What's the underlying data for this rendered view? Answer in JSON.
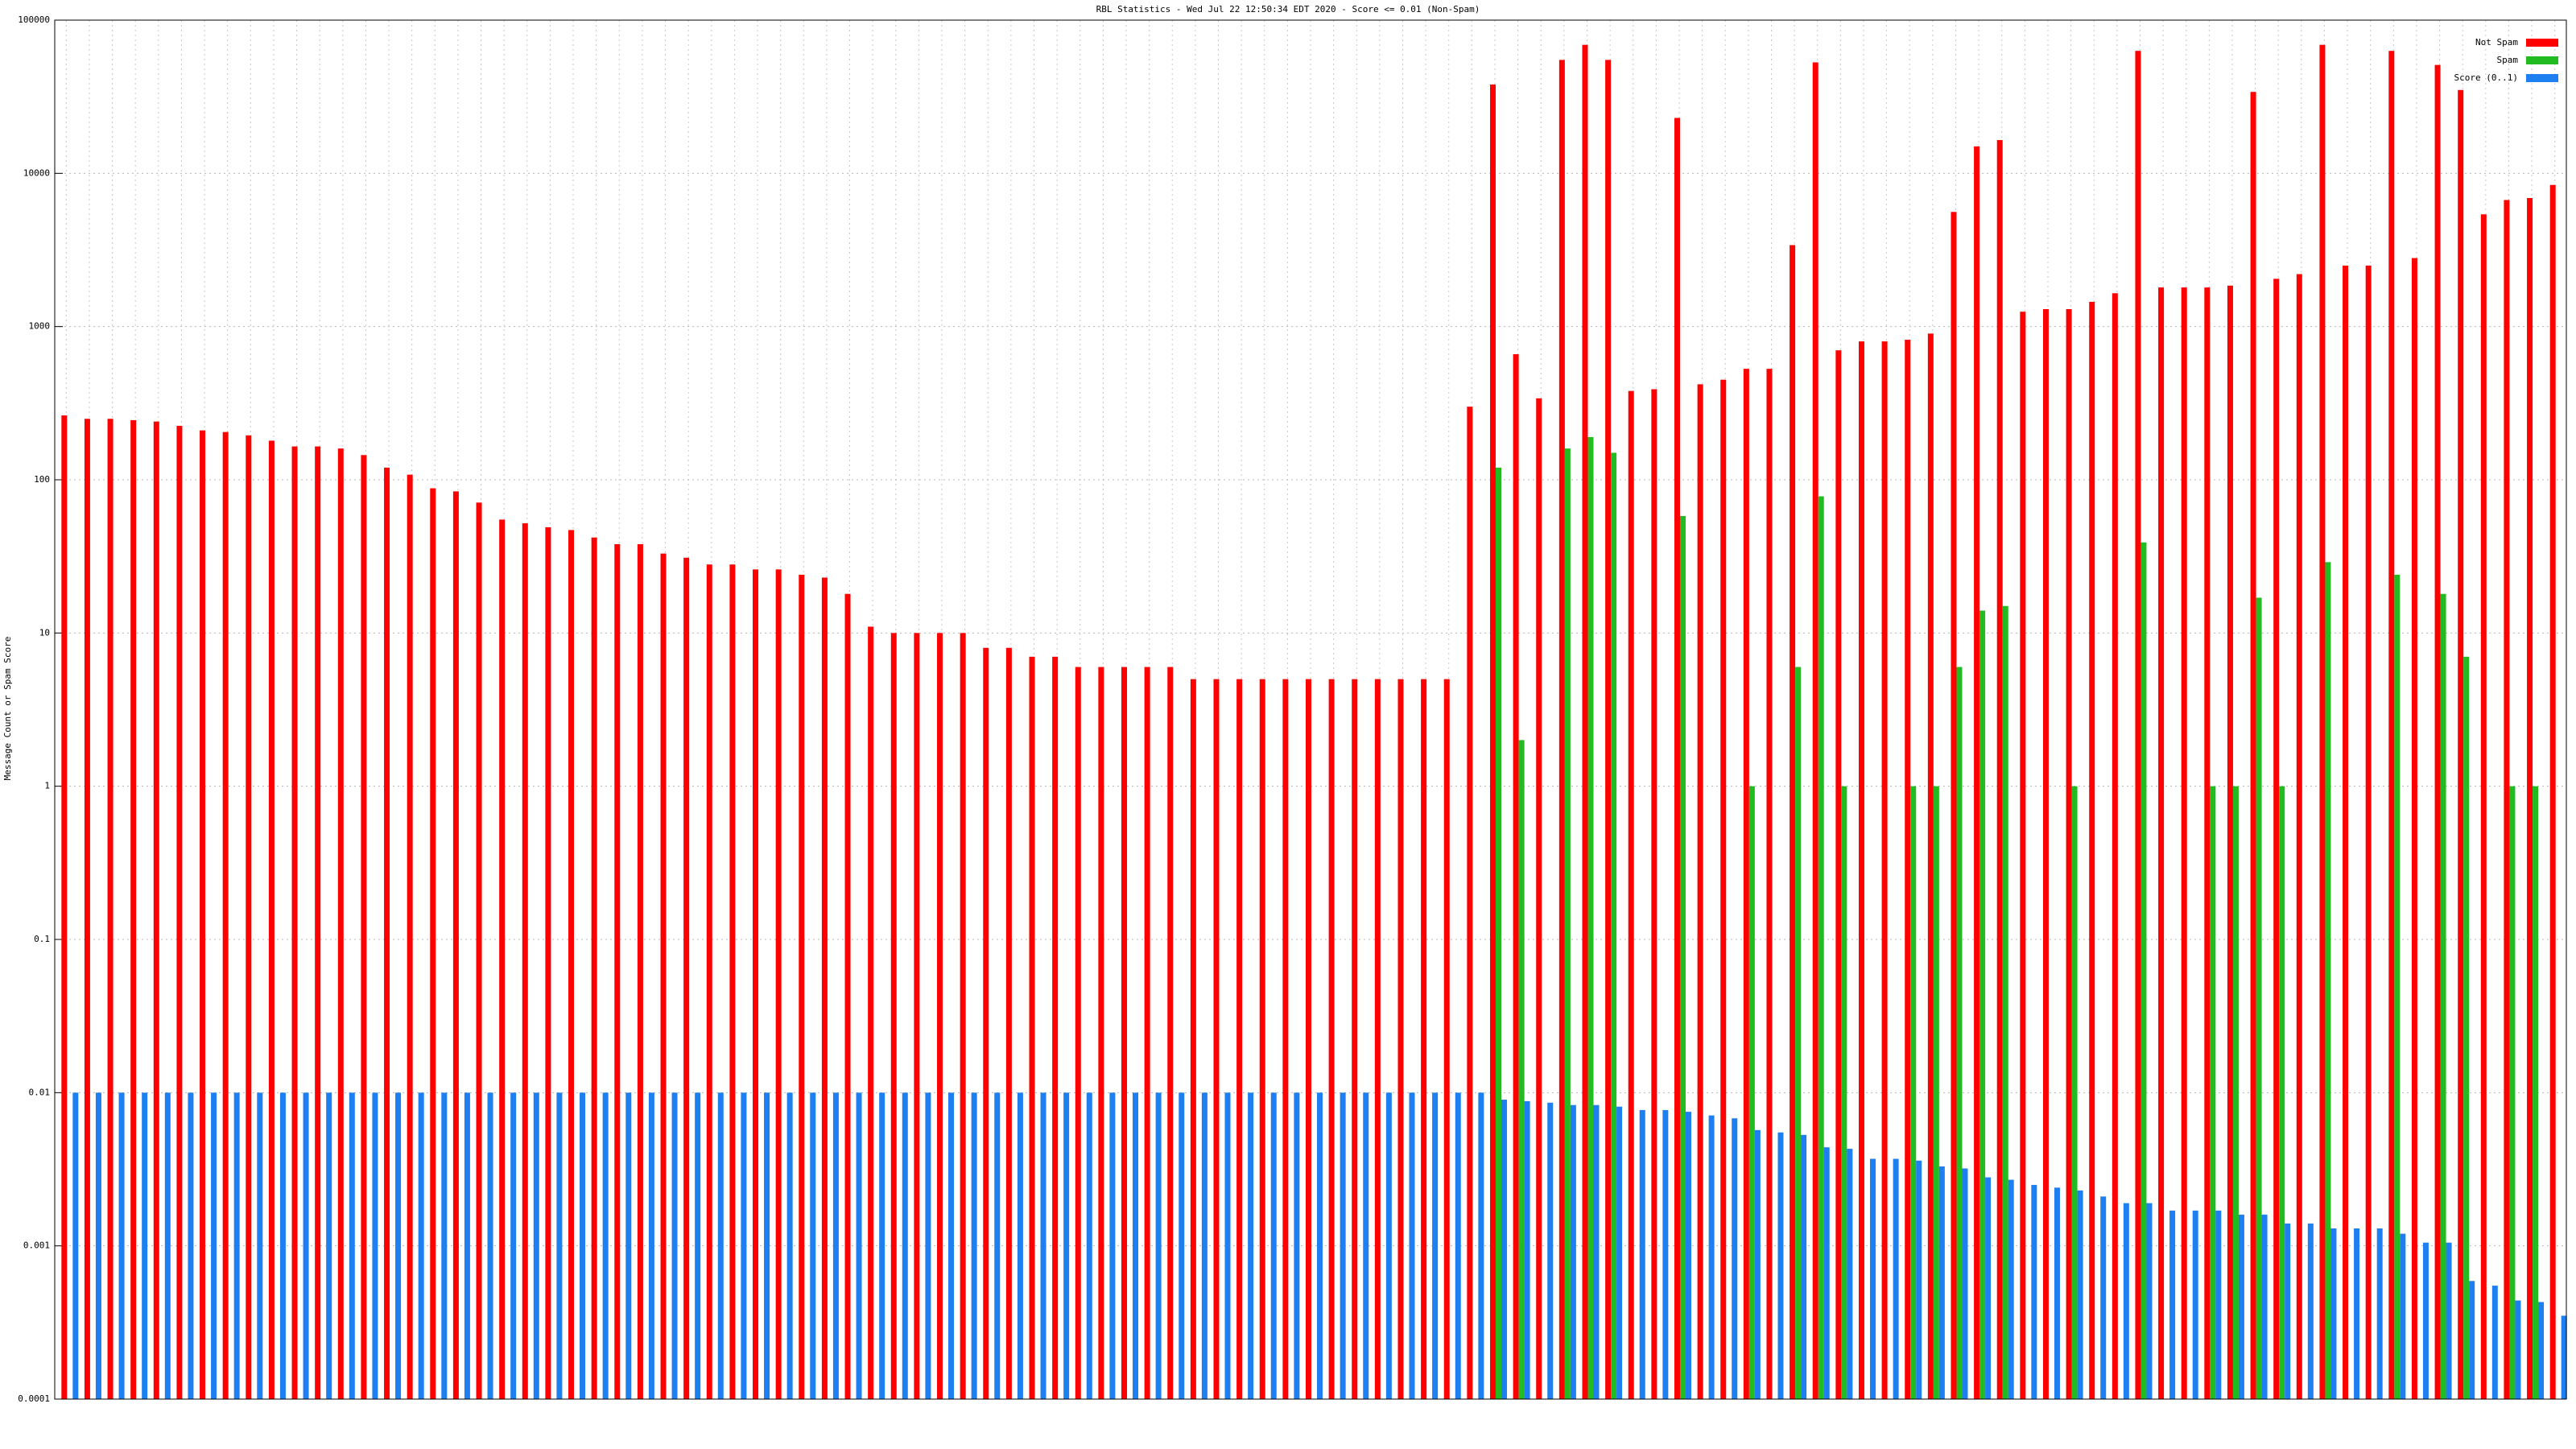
{
  "chart_data": {
    "type": "bar",
    "title": "RBL Statistics - Wed Jul 22 12:50:34 EDT 2020 - Score <= 0.01 (Non-Spam)",
    "y_label": "Message Count or Spam Score",
    "log_y": true,
    "grid": true,
    "legend": "top-right",
    "ylim": [
      0.0001,
      100000
    ],
    "yticks": [
      0.0001,
      0.001,
      0.01,
      0.1,
      1,
      10,
      100,
      1000,
      10000,
      100000
    ],
    "categories": [
      null,
      null,
      null,
      null,
      null,
      null,
      null,
      null,
      null,
      null,
      null,
      null,
      null,
      null,
      null,
      null,
      null,
      null,
      null,
      null,
      null,
      null,
      null,
      null,
      null,
      null,
      null,
      null,
      null,
      null,
      null,
      null,
      null,
      null,
      null,
      null,
      null,
      null,
      null,
      null,
      null,
      null,
      null,
      null,
      null,
      null,
      null,
      null,
      null,
      null,
      null,
      null,
      null,
      null,
      null,
      null,
      null,
      null,
      null,
      null,
      null,
      null,
      null,
      null,
      null,
      null,
      null,
      null,
      null,
      null,
      null,
      null,
      null,
      null,
      null,
      null,
      null,
      null,
      null,
      null,
      null,
      null,
      null,
      null,
      null,
      null,
      null,
      null,
      null,
      null,
      null,
      null,
      null,
      null,
      null,
      null,
      null,
      null,
      null,
      null,
      null,
      null,
      null,
      null,
      null,
      null,
      null,
      null,
      null
    ],
    "series": [
      {
        "name": "Not Spam",
        "color": "#ff0000",
        "values": [
          263,
          250,
          250,
          245,
          240,
          225,
          210,
          205,
          195,
          180,
          165,
          165,
          160,
          145,
          120,
          108,
          88,
          84,
          71,
          55,
          52,
          49,
          47,
          42,
          38,
          38,
          33,
          31,
          28,
          28,
          26,
          26,
          24,
          23,
          18,
          11,
          10,
          10,
          10,
          10,
          8,
          8,
          7,
          7,
          6,
          6,
          6,
          6,
          6,
          5,
          5,
          5,
          5,
          5,
          5,
          5,
          5,
          5,
          5,
          5,
          5,
          300,
          38000,
          660,
          340,
          55000,
          69000,
          55000,
          380,
          390,
          23000,
          420,
          450,
          530,
          530,
          3400,
          53000,
          700,
          800,
          800,
          820,
          900,
          5600,
          15000,
          16500,
          1250,
          1300,
          1300,
          1450,
          1650,
          63000,
          1800,
          1800,
          1800,
          1850,
          34000,
          2050,
          2200,
          69000,
          2500,
          2500,
          63000,
          2800,
          51000,
          35000,
          5400,
          6700,
          6900,
          8400
        ]
      },
      {
        "name": "Spam",
        "color": "#22bb22",
        "values": [
          null,
          null,
          null,
          null,
          null,
          null,
          null,
          null,
          null,
          null,
          null,
          null,
          null,
          null,
          null,
          null,
          null,
          null,
          null,
          null,
          null,
          null,
          null,
          null,
          null,
          null,
          null,
          null,
          null,
          null,
          null,
          null,
          null,
          null,
          null,
          null,
          null,
          null,
          null,
          null,
          null,
          null,
          null,
          null,
          null,
          null,
          null,
          null,
          null,
          null,
          null,
          null,
          null,
          null,
          null,
          null,
          null,
          null,
          null,
          null,
          null,
          null,
          120,
          2,
          null,
          160,
          190,
          150,
          null,
          null,
          58,
          null,
          null,
          1,
          null,
          6,
          78,
          1,
          null,
          null,
          1,
          1,
          6,
          14,
          15,
          null,
          null,
          1,
          null,
          null,
          39,
          null,
          null,
          1,
          1,
          17,
          1,
          null,
          29,
          null,
          null,
          24,
          null,
          18,
          7,
          null,
          1,
          1,
          null
        ]
      },
      {
        "name": "Score (0..1)",
        "color": "#1e7ff0",
        "values": [
          0.01,
          0.01,
          0.01,
          0.01,
          0.01,
          0.01,
          0.01,
          0.01,
          0.01,
          0.01,
          0.01,
          0.01,
          0.01,
          0.01,
          0.01,
          0.01,
          0.01,
          0.01,
          0.01,
          0.01,
          0.01,
          0.01,
          0.01,
          0.01,
          0.01,
          0.01,
          0.01,
          0.01,
          0.01,
          0.01,
          0.01,
          0.01,
          0.01,
          0.01,
          0.01,
          0.01,
          0.01,
          0.01,
          0.01,
          0.01,
          0.01,
          0.01,
          0.01,
          0.01,
          0.01,
          0.01,
          0.01,
          0.01,
          0.01,
          0.01,
          0.01,
          0.01,
          0.01,
          0.01,
          0.01,
          0.01,
          0.01,
          0.01,
          0.01,
          0.01,
          0.01,
          0.01,
          0.009,
          0.0088,
          0.0086,
          0.0083,
          0.0083,
          0.0081,
          0.0077,
          0.0077,
          0.0075,
          0.0071,
          0.0068,
          0.0057,
          0.0055,
          0.0053,
          0.0044,
          0.0043,
          0.0037,
          0.0037,
          0.0036,
          0.0033,
          0.0032,
          0.0028,
          0.0027,
          0.0025,
          0.0024,
          0.0023,
          0.0021,
          0.0019,
          0.0019,
          0.0017,
          0.0017,
          0.0017,
          0.0016,
          0.0016,
          0.0014,
          0.0014,
          0.0013,
          0.0013,
          0.0013,
          0.0012,
          0.00105,
          0.00105,
          0.00059,
          0.00055,
          0.00044,
          0.00043,
          0.00035
        ]
      }
    ]
  }
}
